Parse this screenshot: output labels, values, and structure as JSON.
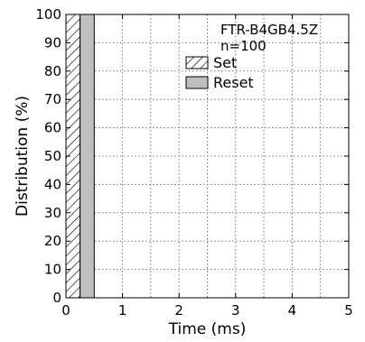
{
  "chart_data": {
    "type": "bar",
    "xlabel": "Time (ms)",
    "ylabel": "Distribution (%)",
    "xlim": [
      0,
      5
    ],
    "ylim": [
      0,
      100
    ],
    "x_ticks": [
      "0",
      "1",
      "2",
      "3",
      "4",
      "5"
    ],
    "y_ticks": [
      "0",
      "10",
      "20",
      "30",
      "40",
      "50",
      "60",
      "70",
      "80",
      "90",
      "100"
    ],
    "grid": true,
    "annotations": [
      "FTR-B4GB4.5Z",
      "n=100"
    ],
    "legend_position": "top-right",
    "series": [
      {
        "name": "Set",
        "pattern": "hatched",
        "color": "#ffffff",
        "bins": [
          {
            "x0": 0.0,
            "x1": 0.25,
            "value": 100
          }
        ]
      },
      {
        "name": "Reset",
        "pattern": "solid",
        "color": "#c0c0c0",
        "bins": [
          {
            "x0": 0.25,
            "x1": 0.5,
            "value": 100
          }
        ]
      }
    ]
  }
}
